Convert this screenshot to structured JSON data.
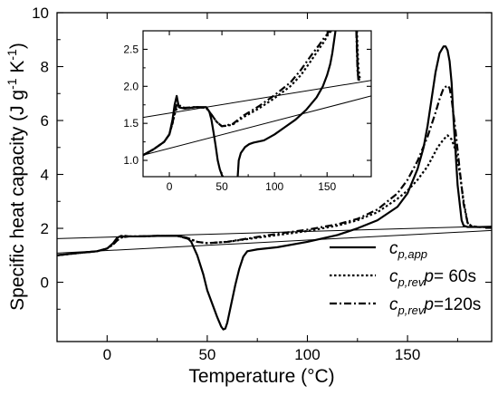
{
  "chart_data": [
    {
      "id": "main",
      "type": "line",
      "xlabel": "Temperature (°C)",
      "ylabel": {
        "base": "Specific heat capacity  (J g",
        "sup1": "-1",
        "mid": " K",
        "sup2": "-1",
        "end": ")"
      },
      "xlim": [
        -25,
        192
      ],
      "ylim": [
        -2.2,
        10
      ],
      "xticks": [
        0,
        50,
        100,
        150
      ],
      "yticks": [
        0,
        2,
        4,
        6,
        8,
        10
      ],
      "grid": false,
      "legend_position": "bottom-right",
      "legend": [
        {
          "sym": "c",
          "sub": "p,app",
          "suffix": "",
          "pre_param": "",
          "p_value": ""
        },
        {
          "sym": "c",
          "sub": "p,rev",
          "suffix": " ",
          "pre_param": "p",
          "p_value": "= 60s"
        },
        {
          "sym": "c",
          "sub": "p,rev",
          "suffix": " ",
          "pre_param": "p",
          "p_value": "=120s"
        }
      ],
      "series": [
        {
          "style": "solid",
          "x": [
            -25,
            -15,
            -5,
            0,
            3,
            5,
            7,
            9,
            11,
            15,
            25,
            35,
            40,
            42,
            45,
            48,
            50,
            53,
            55,
            57,
            58,
            59,
            60,
            62,
            64,
            66,
            68,
            70,
            75,
            85,
            100,
            115,
            125,
            135,
            145,
            150,
            155,
            158,
            160,
            162,
            164,
            166,
            168,
            169,
            170,
            171,
            172,
            173,
            175,
            177,
            178,
            180,
            185,
            192
          ],
          "y": [
            1.0,
            1.08,
            1.15,
            1.25,
            1.45,
            1.65,
            1.72,
            1.68,
            1.7,
            1.7,
            1.72,
            1.72,
            1.65,
            1.5,
            1.0,
            0.3,
            -0.3,
            -0.9,
            -1.3,
            -1.65,
            -1.75,
            -1.72,
            -1.5,
            -0.8,
            -0.1,
            0.5,
            0.95,
            1.15,
            1.22,
            1.3,
            1.5,
            1.75,
            2.0,
            2.3,
            2.8,
            3.3,
            4.2,
            5.0,
            5.8,
            6.8,
            7.8,
            8.5,
            8.75,
            8.75,
            8.6,
            8.2,
            7.4,
            6.0,
            3.6,
            2.3,
            2.1,
            2.05,
            2.05,
            2.05
          ]
        },
        {
          "style": "dotted",
          "x": [
            -25,
            -15,
            -5,
            0,
            3,
            5,
            7,
            9,
            11,
            15,
            25,
            35,
            40,
            45,
            50,
            60,
            70,
            85,
            100,
            115,
            125,
            135,
            145,
            150,
            155,
            160,
            165,
            168,
            170,
            172,
            174,
            176,
            178,
            180,
            182,
            185,
            192
          ],
          "y": [
            1.0,
            1.08,
            1.15,
            1.25,
            1.4,
            1.55,
            1.65,
            1.7,
            1.7,
            1.7,
            1.72,
            1.72,
            1.65,
            1.5,
            1.45,
            1.5,
            1.6,
            1.75,
            1.9,
            2.1,
            2.3,
            2.6,
            3.1,
            3.4,
            3.8,
            4.3,
            5.0,
            5.3,
            5.45,
            5.3,
            4.9,
            4.1,
            3.0,
            2.2,
            2.08,
            2.05,
            2.05
          ]
        },
        {
          "style": "dashdot",
          "x": [
            -25,
            -15,
            -5,
            0,
            3,
            5,
            7,
            9,
            11,
            15,
            25,
            35,
            40,
            45,
            50,
            60,
            70,
            85,
            100,
            115,
            125,
            135,
            145,
            150,
            155,
            160,
            164,
            166,
            168,
            170,
            171,
            172,
            174,
            176,
            178,
            180,
            182,
            185,
            192
          ],
          "y": [
            1.0,
            1.08,
            1.15,
            1.25,
            1.4,
            1.55,
            1.68,
            1.72,
            1.7,
            1.7,
            1.72,
            1.72,
            1.62,
            1.5,
            1.45,
            1.5,
            1.62,
            1.8,
            1.95,
            2.15,
            2.35,
            2.7,
            3.3,
            3.8,
            4.5,
            5.4,
            6.3,
            6.8,
            7.2,
            7.3,
            7.2,
            6.8,
            5.6,
            4.2,
            2.9,
            2.2,
            2.08,
            2.05,
            2.05
          ]
        },
        {
          "style": "baseline",
          "x": [
            -25,
            192
          ],
          "y": [
            1.08,
            1.92
          ]
        },
        {
          "style": "baseline",
          "x": [
            -25,
            192
          ],
          "y": [
            1.62,
            2.08
          ]
        }
      ]
    },
    {
      "id": "inset",
      "type": "line",
      "xlim": [
        -25,
        192
      ],
      "ylim": [
        0.78,
        2.75
      ],
      "xticks": [
        0,
        50,
        100,
        150
      ],
      "yticks": [
        1.0,
        1.5,
        2.0,
        2.5
      ],
      "ytick_labels": [
        "1.0",
        "1.5",
        "2.0",
        "2.5"
      ],
      "grid": false,
      "series": [
        {
          "style": "solid",
          "x": [
            -25,
            -15,
            -5,
            0,
            3,
            5,
            7,
            9,
            11,
            15,
            25,
            35,
            38,
            40,
            42,
            44,
            46,
            48,
            50,
            51
          ],
          "y": [
            1.07,
            1.15,
            1.25,
            1.35,
            1.55,
            1.75,
            1.87,
            1.72,
            1.71,
            1.7,
            1.72,
            1.72,
            1.66,
            1.55,
            1.38,
            1.2,
            1.0,
            0.88,
            0.8,
            0.78
          ]
        },
        {
          "style": "solid",
          "x": [
            65,
            66,
            68,
            72,
            76,
            80,
            90,
            100,
            110,
            120,
            130,
            140,
            146,
            150,
            153,
            155,
            157,
            158
          ],
          "y": [
            0.78,
            1.0,
            1.1,
            1.18,
            1.22,
            1.24,
            1.27,
            1.35,
            1.45,
            1.55,
            1.68,
            1.85,
            2.0,
            2.15,
            2.3,
            2.45,
            2.65,
            2.75
          ]
        },
        {
          "style": "solid",
          "x": [
            178,
            178.6,
            179.4,
            179.8
          ],
          "y": [
            2.75,
            2.45,
            2.15,
            2.08
          ]
        },
        {
          "style": "dotted",
          "x": [
            -25,
            -15,
            -5,
            0,
            3,
            5,
            7,
            9,
            11,
            15,
            25,
            35,
            40,
            45,
            50,
            60,
            70,
            85,
            100,
            115,
            125,
            135,
            142,
            147,
            151,
            154
          ],
          "y": [
            1.07,
            1.15,
            1.25,
            1.35,
            1.5,
            1.62,
            1.7,
            1.72,
            1.71,
            1.7,
            1.72,
            1.71,
            1.62,
            1.52,
            1.46,
            1.48,
            1.58,
            1.7,
            1.84,
            2.0,
            2.15,
            2.35,
            2.5,
            2.6,
            2.7,
            2.75
          ]
        },
        {
          "style": "dotted",
          "x": [
            178.4,
            179,
            179.8,
            181,
            182
          ],
          "y": [
            2.75,
            2.5,
            2.25,
            2.12,
            2.08
          ]
        },
        {
          "style": "dashdot",
          "x": [
            -25,
            -15,
            -5,
            0,
            3,
            5,
            7,
            9,
            11,
            15,
            25,
            35,
            40,
            45,
            50,
            60,
            70,
            85,
            100,
            115,
            125,
            135,
            142,
            147,
            150,
            152
          ],
          "y": [
            1.07,
            1.15,
            1.25,
            1.35,
            1.5,
            1.65,
            1.75,
            1.76,
            1.72,
            1.71,
            1.72,
            1.71,
            1.62,
            1.52,
            1.46,
            1.49,
            1.6,
            1.73,
            1.88,
            2.05,
            2.22,
            2.42,
            2.55,
            2.65,
            2.7,
            2.75
          ]
        },
        {
          "style": "dashdot",
          "x": [
            177.8,
            178.4,
            179,
            180,
            181
          ],
          "y": [
            2.75,
            2.45,
            2.2,
            2.1,
            2.08
          ]
        },
        {
          "style": "baseline",
          "x": [
            -25,
            192
          ],
          "y": [
            1.07,
            1.87
          ]
        },
        {
          "style": "baseline",
          "x": [
            -25,
            192
          ],
          "y": [
            1.58,
            2.08
          ]
        }
      ]
    }
  ]
}
